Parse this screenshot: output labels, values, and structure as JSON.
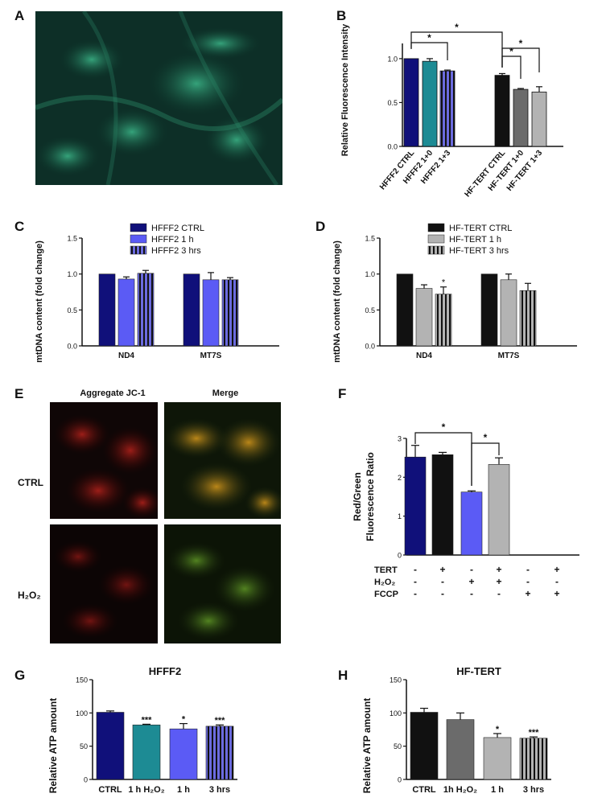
{
  "panel_labels": {
    "A": "A",
    "B": "B",
    "C": "C",
    "D": "D",
    "E": "E",
    "F": "F",
    "G": "G",
    "H": "H"
  },
  "panel_e": {
    "col_labels": [
      "Aggregate JC-1",
      "Merge"
    ],
    "row_labels": [
      "CTRL",
      "H₂O₂"
    ]
  },
  "colors": {
    "navy": "#10107a",
    "teal": "#1d8b94",
    "blue_purple": "#5b5bf5",
    "black": "#111111",
    "dark_gray": "#6b6b6b",
    "light_gray": "#b3b3b3",
    "hatch_purple": "#6b6bdf"
  },
  "chart_data": [
    {
      "id": "B",
      "type": "bar",
      "ylabel": "Relative Fluorescence Intensity",
      "ylim": [
        0,
        1.1
      ],
      "yticks": [
        "0.0",
        "0.5",
        "1.0"
      ],
      "categories": [
        "HFFF2 CTRL",
        "HFFF2 1+0",
        "HFFF2 1+3",
        "HF-TERT CTRL",
        "HF-TERT 1+0",
        "HF-TERT 1+3"
      ],
      "values": [
        1.0,
        0.97,
        0.86,
        0.81,
        0.65,
        0.62
      ],
      "errors": [
        0.0,
        0.03,
        0.01,
        0.02,
        0.01,
        0.06
      ],
      "bar_colors": [
        "#10107a",
        "#1d8b94",
        "#6b6bdf",
        "#111111",
        "#6b6b6b",
        "#b3b3b3"
      ],
      "significance": [
        "*",
        "*",
        "*",
        "*"
      ]
    },
    {
      "id": "C",
      "type": "bar",
      "ylabel": "mtDNA content (fold change)",
      "ylim": [
        0,
        1.5
      ],
      "yticks": [
        "0.0",
        "0.5",
        "1.0",
        "1.5"
      ],
      "categories": [
        "ND4",
        "MT7S"
      ],
      "series": [
        {
          "name": "HFFF2 CTRL",
          "values": [
            1.0,
            1.0
          ],
          "errors": [
            0.0,
            0.0
          ],
          "color": "#10107a"
        },
        {
          "name": "HFFF2 1 h",
          "values": [
            0.93,
            0.92
          ],
          "errors": [
            0.03,
            0.1
          ],
          "color": "#5b5bf5"
        },
        {
          "name": "HFFF2 3 hrs",
          "values": [
            1.01,
            0.92
          ],
          "errors": [
            0.04,
            0.03
          ],
          "color": "#6b6bdf"
        }
      ],
      "legend": "top"
    },
    {
      "id": "D",
      "type": "bar",
      "ylabel": "mtDNA content (fold change)",
      "ylim": [
        0,
        1.5
      ],
      "yticks": [
        "0.0",
        "0.5",
        "1.0",
        "1.5"
      ],
      "categories": [
        "ND4",
        "MT7S"
      ],
      "series": [
        {
          "name": "HF-TERT CTRL",
          "values": [
            1.0,
            1.0
          ],
          "errors": [
            0.0,
            0.0
          ],
          "color": "#111111"
        },
        {
          "name": "HF-TERT 1 h",
          "values": [
            0.8,
            0.92
          ],
          "errors": [
            0.05,
            0.08
          ],
          "color": "#b3b3b3"
        },
        {
          "name": "HF-TERT 3 hrs",
          "values": [
            0.72,
            0.77
          ],
          "errors": [
            0.1,
            0.1
          ],
          "color": "#b3b3b3"
        }
      ],
      "annotations": [
        "*"
      ],
      "legend": "top"
    },
    {
      "id": "F",
      "type": "bar",
      "ylabel": "Red/Green Fluorescence Ratio",
      "ylim": [
        0,
        3
      ],
      "yticks": [
        "0",
        "1",
        "2",
        "3"
      ],
      "values": [
        2.52,
        2.58,
        1.62,
        2.33,
        0,
        0
      ],
      "errors": [
        0.3,
        0.06,
        0.03,
        0.17,
        0,
        0
      ],
      "bar_colors": [
        "#10107a",
        "#111111",
        "#5b5bf5",
        "#b3b3b3",
        "#ffffff",
        "#ffffff"
      ],
      "conditions": [
        {
          "name": "TERT",
          "values": [
            "-",
            "+",
            "-",
            "+",
            "-",
            "+"
          ]
        },
        {
          "name": "H₂O₂",
          "values": [
            "-",
            "-",
            "+",
            "+",
            "-",
            "-"
          ]
        },
        {
          "name": "FCCP",
          "values": [
            "-",
            "-",
            "-",
            "-",
            "+",
            "+"
          ]
        }
      ],
      "significance": [
        "*",
        "*"
      ]
    },
    {
      "id": "G",
      "type": "bar",
      "title": "HFFF2",
      "ylabel": "Relative ATP amount",
      "ylim": [
        0,
        150
      ],
      "yticks": [
        "0",
        "50",
        "100",
        "150"
      ],
      "categories": [
        "CTRL",
        "1 h H₂O₂",
        "1 h",
        "3 hrs"
      ],
      "values": [
        101,
        82,
        76,
        80
      ],
      "errors": [
        2,
        1,
        8,
        2
      ],
      "bar_colors": [
        "#10107a",
        "#1d8b94",
        "#5b5bf5",
        "#6b6bdf"
      ],
      "annotations": [
        "",
        "***",
        "*",
        "***"
      ]
    },
    {
      "id": "H",
      "type": "bar",
      "title": "HF-TERT",
      "ylabel": "Relative ATP amount",
      "ylim": [
        0,
        150
      ],
      "yticks": [
        "0",
        "50",
        "100",
        "150"
      ],
      "categories": [
        "CTRL",
        "1h H₂O₂",
        "1 h",
        "3 hrs"
      ],
      "values": [
        101,
        90,
        63,
        62
      ],
      "errors": [
        6,
        10,
        6,
        2
      ],
      "bar_colors": [
        "#111111",
        "#6b6b6b",
        "#b3b3b3",
        "#b3b3b3"
      ],
      "annotations": [
        "",
        "",
        "*",
        "***"
      ]
    }
  ]
}
